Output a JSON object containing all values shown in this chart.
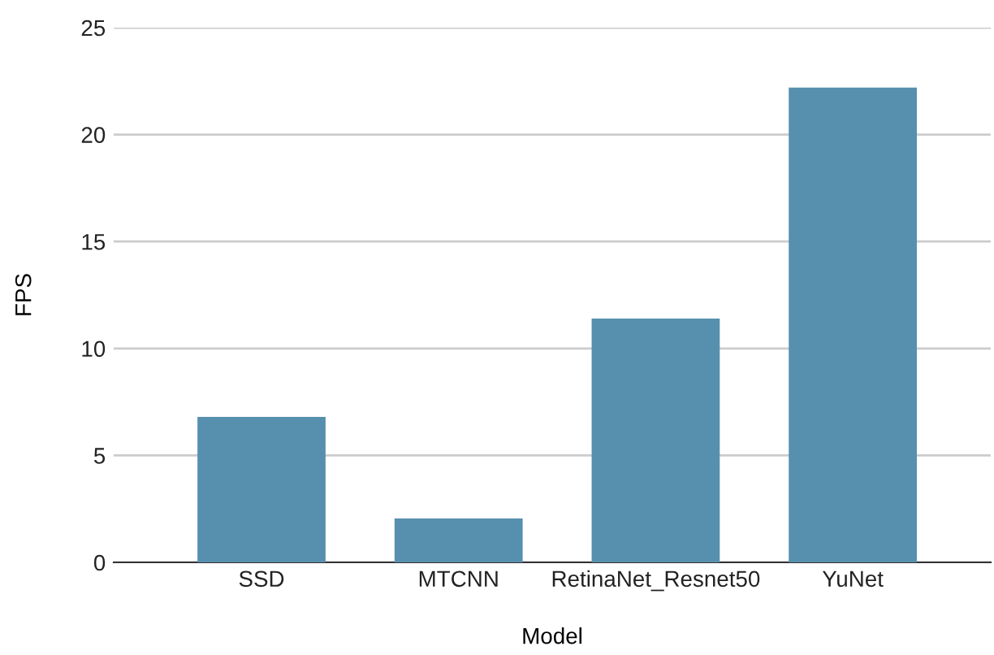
{
  "chart_data": {
    "type": "bar",
    "xlabel": "Model",
    "ylabel": "FPS",
    "categories": [
      "SSD",
      "MTCNN",
      "RetinaNet_Resnet50",
      "YuNet"
    ],
    "values": [
      6.8,
      2.05,
      11.4,
      22.2
    ],
    "color": "#5790ae",
    "ylim": [
      0,
      25
    ],
    "yticks": [
      0,
      5,
      10,
      15,
      20,
      25
    ],
    "grid": "y"
  }
}
